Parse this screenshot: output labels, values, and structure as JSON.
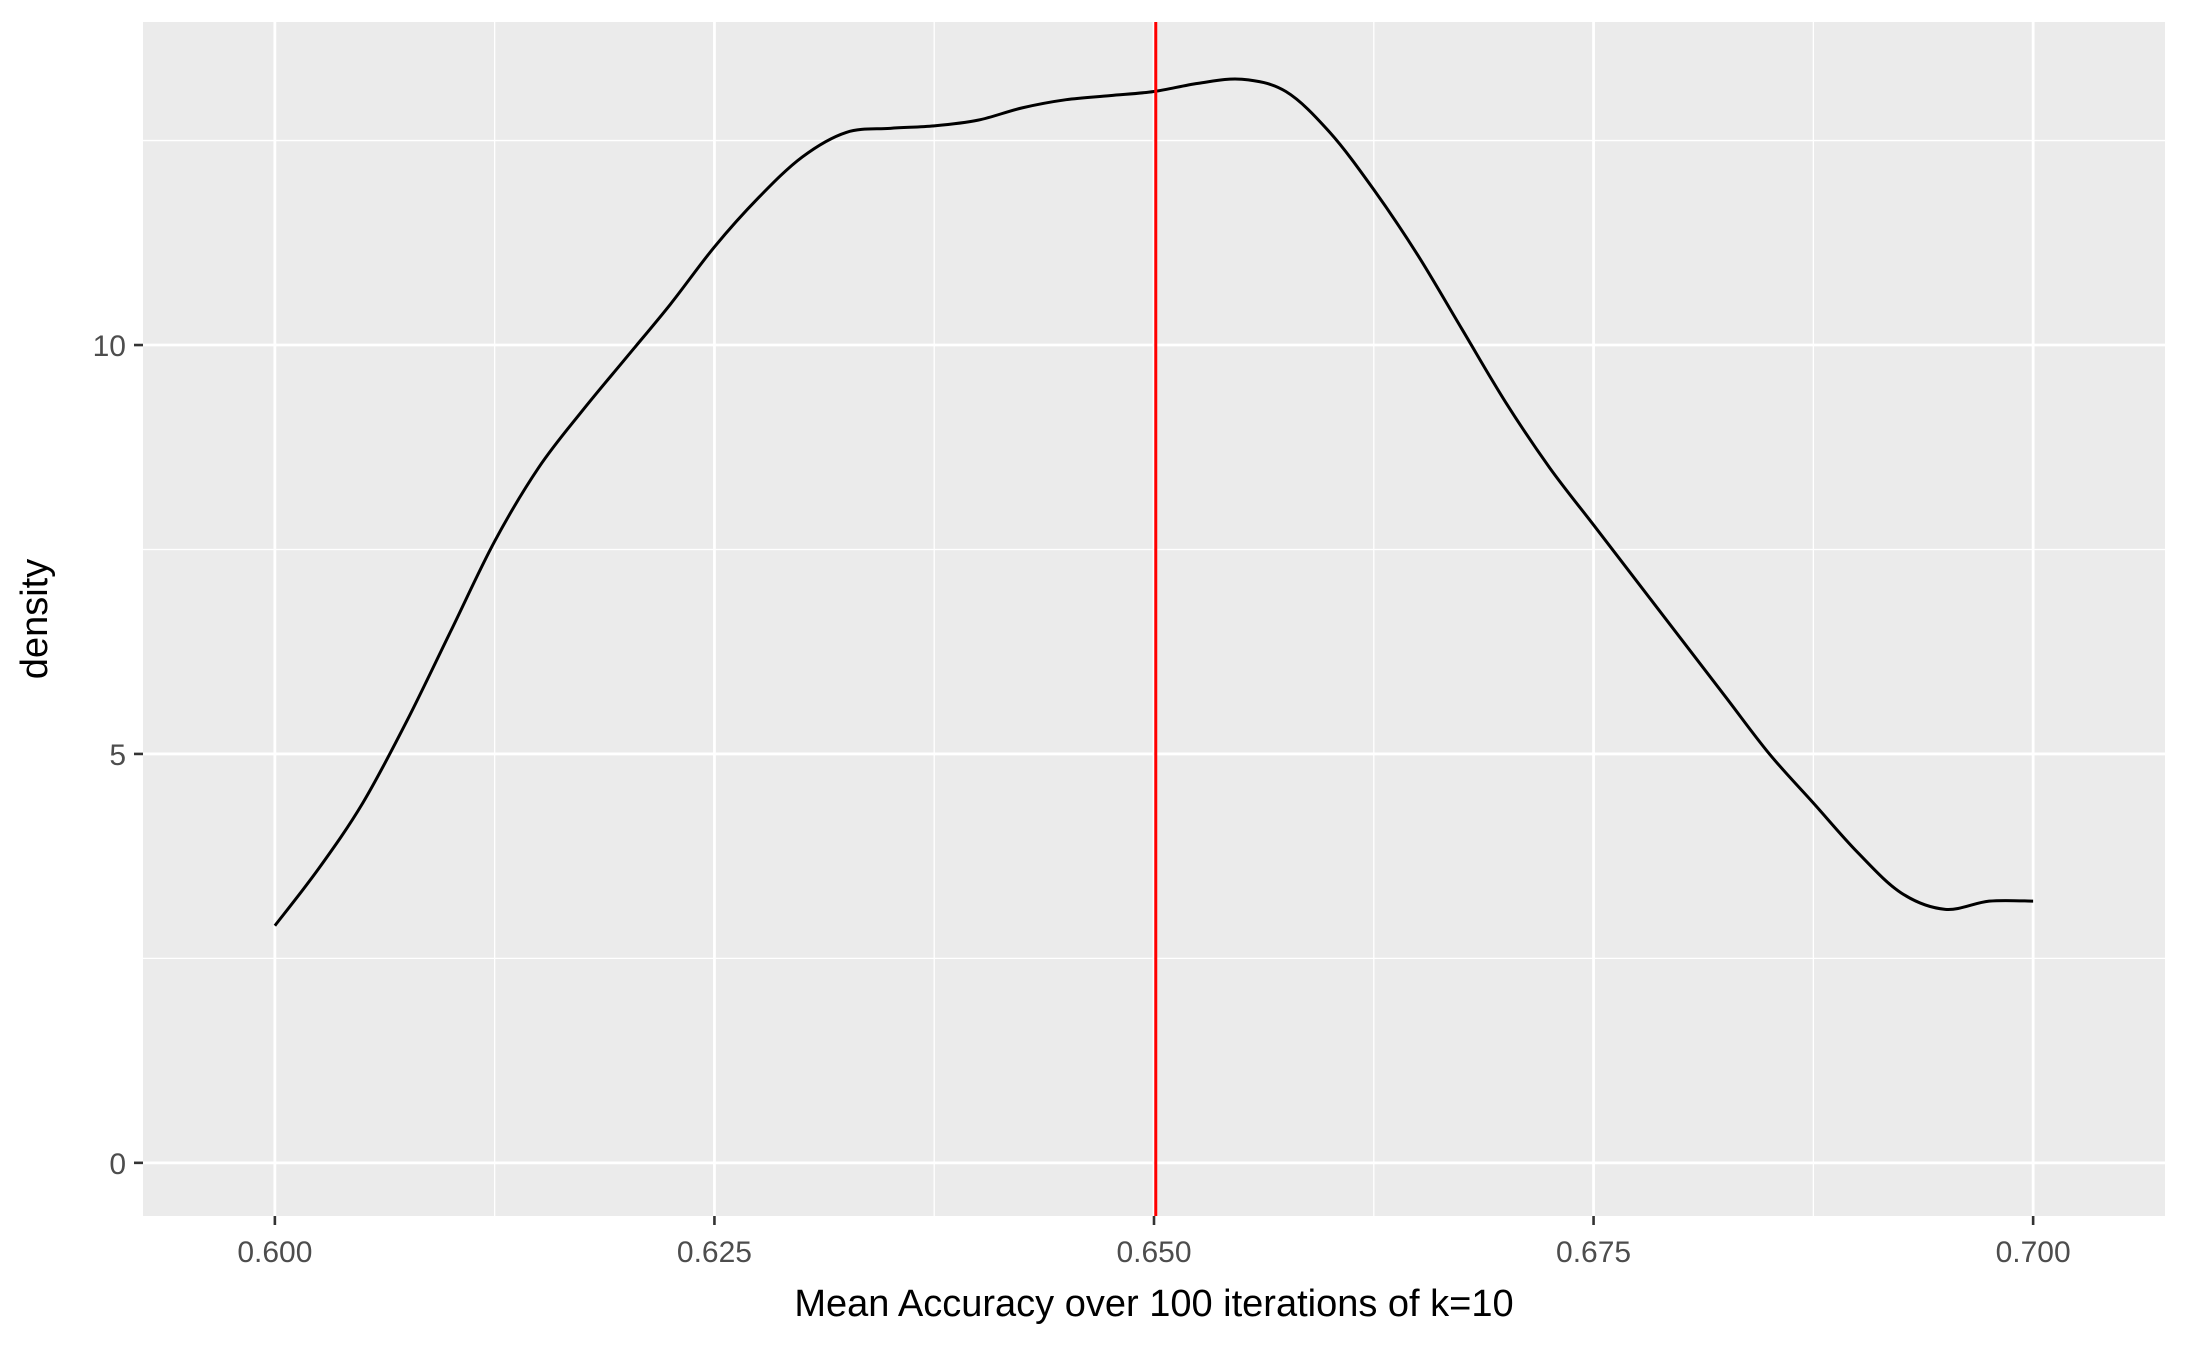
{
  "chart_data": {
    "type": "line",
    "title": "",
    "xlabel": "Mean Accuracy over 100 iterations of k=10",
    "ylabel": "density",
    "xlim": [
      0.5925,
      0.7075
    ],
    "ylim": [
      -0.65,
      13.95
    ],
    "x_ticks": [
      0.6,
      0.625,
      0.65,
      0.675,
      0.7
    ],
    "x_tick_labels": [
      "0.600",
      "0.625",
      "0.650",
      "0.675",
      "0.700"
    ],
    "y_ticks": [
      0,
      5,
      10
    ],
    "y_tick_labels": [
      "0",
      "5",
      "10"
    ],
    "x_minor_gridlines": [
      0.6125,
      0.6375,
      0.6625,
      0.6875
    ],
    "y_minor_gridlines": [
      2.5,
      7.5,
      12.5
    ],
    "grid": true,
    "legend": "none",
    "vline": {
      "x": 0.6501,
      "color": "#ff0000"
    },
    "series": [
      {
        "color": "#000000",
        "x": [
          0.6,
          0.6025,
          0.605,
          0.6075,
          0.61,
          0.6125,
          0.615,
          0.6175,
          0.62,
          0.6225,
          0.625,
          0.6275,
          0.63,
          0.6325,
          0.635,
          0.6375,
          0.64,
          0.6425,
          0.645,
          0.6475,
          0.65,
          0.6525,
          0.655,
          0.6575,
          0.66,
          0.6625,
          0.665,
          0.6675,
          0.67,
          0.6725,
          0.675,
          0.6775,
          0.68,
          0.6825,
          0.685,
          0.6875,
          0.69,
          0.6925,
          0.695,
          0.6975,
          0.7
        ],
        "y": [
          2.9,
          3.6,
          4.4,
          5.4,
          6.5,
          7.6,
          8.5,
          9.2,
          9.85,
          10.5,
          11.2,
          11.8,
          12.3,
          12.6,
          12.65,
          12.68,
          12.75,
          12.9,
          13.0,
          13.05,
          13.1,
          13.2,
          13.25,
          13.1,
          12.6,
          11.9,
          11.1,
          10.2,
          9.3,
          8.5,
          7.8,
          7.1,
          6.4,
          5.7,
          5.0,
          4.4,
          3.8,
          3.3,
          3.1,
          3.2,
          3.2
        ]
      }
    ]
  }
}
